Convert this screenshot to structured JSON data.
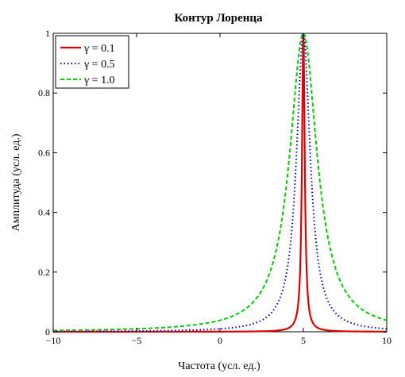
{
  "chart_data": {
    "type": "line",
    "title": "Контур Лоренца",
    "xlabel": "Частота (усл. ед.)",
    "ylabel": "Амплитуда (усл. ед.)",
    "xlim": [
      -10,
      10
    ],
    "ylim": [
      0,
      1
    ],
    "x_ticks": [
      "−10",
      "−5",
      "0",
      "5",
      "10"
    ],
    "x_tick_values": [
      -10,
      -5,
      0,
      5,
      10
    ],
    "y_ticks": [
      "0",
      "0.2",
      "0.4",
      "0.6",
      "0.8",
      "1"
    ],
    "y_tick_values": [
      0,
      0.2,
      0.4,
      0.6,
      0.8,
      1
    ],
    "grid": false,
    "legend_position": "top-left",
    "function": "lorentzian",
    "center": 5,
    "x_step": 0.02,
    "series": [
      {
        "name": "γ = 0.1",
        "gamma": 0.1,
        "color": "#dd0000",
        "style": "solid"
      },
      {
        "name": "γ = 0.5",
        "gamma": 0.5,
        "color": "#0000bb",
        "style": "dotted"
      },
      {
        "name": "γ = 1.0",
        "gamma": 1.0,
        "color": "#00cc00",
        "style": "dashed"
      }
    ]
  }
}
